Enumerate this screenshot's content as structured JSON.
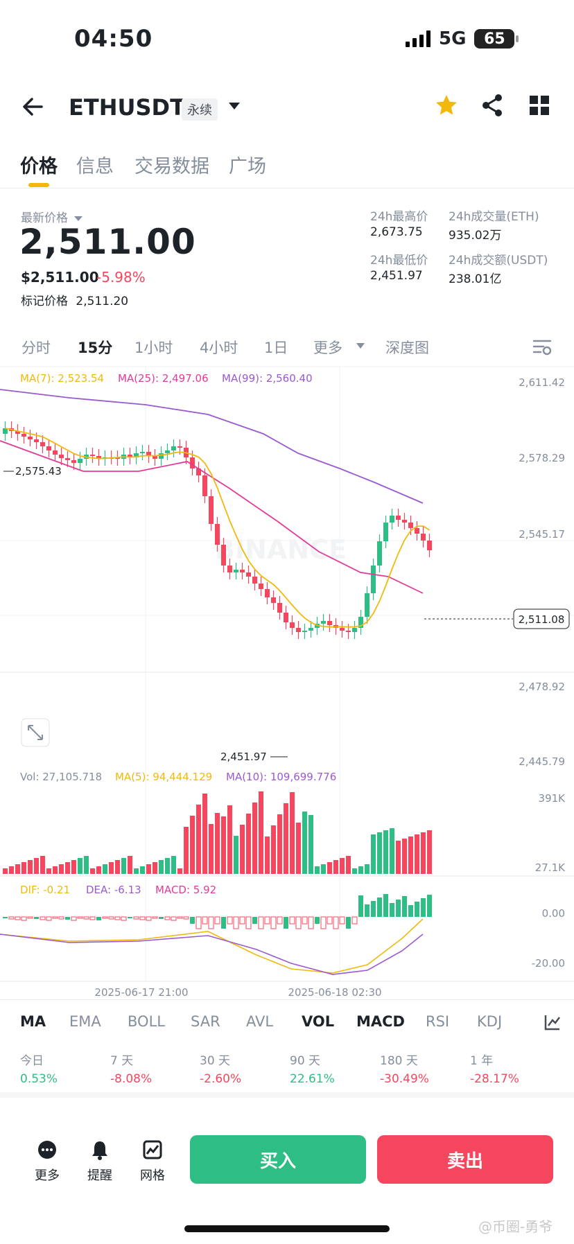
{
  "status_bar": {
    "time": "04:50",
    "network": "5G",
    "battery": "65"
  },
  "header": {
    "symbol": "ETHUSDT",
    "contract_tag": "永续"
  },
  "tabs": [
    "价格",
    "信息",
    "交易数据",
    "广场"
  ],
  "ticker": {
    "last_price_label": "最新价格",
    "last_price": "2,511.00",
    "usd_price": "$2,511.00",
    "change_pct": "-5.98%",
    "mark_price_label": "标记价格",
    "mark_price": "2,511.20",
    "high_label": "24h最高价",
    "high": "2,673.75",
    "low_label": "24h最低价",
    "low": "2,451.97",
    "vol_eth_label": "24h成交量(ETH)",
    "vol_eth": "935.02万",
    "vol_usdt_label": "24h成交额(USDT)",
    "vol_usdt": "238.01亿"
  },
  "timeframes": [
    "分时",
    "15分",
    "1小时",
    "4小时",
    "1日",
    "更多",
    "深度图"
  ],
  "chart": {
    "watermark": "BINANCE",
    "ma_legend": {
      "ma7": "MA(7): 2,523.54",
      "ma25": "MA(25): 2,497.06",
      "ma99": "MA(99): 2,560.40"
    },
    "price_axis": [
      "2,611.42",
      "2,578.29",
      "2,545.17",
      "2,511.08",
      "2,478.92",
      "2,445.79"
    ],
    "hi_marker": "2,575.43",
    "lo_marker": "2,451.97",
    "vol_legend": {
      "vol": "Vol: 27,105.718",
      "ma5": "MA(5): 94,444.129",
      "ma10": "MA(10): 109,699.776"
    },
    "vol_axis": [
      "391K",
      "27.1K"
    ],
    "macd_legend": {
      "dif": "DIF: -0.21",
      "dea": "DEA: -6.13",
      "macd": "MACD: 5.92"
    },
    "macd_axis": [
      "0.00",
      "-20.00"
    ],
    "time_axis": [
      "2025-06-17 21:00",
      "2025-06-18 02:30"
    ],
    "colors": {
      "up": "#2ebd85",
      "down": "#f6465d",
      "ma7": "#f0b90b",
      "ma25": "#e5399a",
      "ma99": "#9b59d0"
    }
  },
  "indicator_tabs": [
    "MA",
    "EMA",
    "BOLL",
    "SAR",
    "AVL",
    "VOL",
    "MACD",
    "RSI",
    "KDJ"
  ],
  "performance": [
    {
      "label": "今日",
      "value": "0.53%",
      "dir": "up"
    },
    {
      "label": "7 天",
      "value": "-8.08%",
      "dir": "down"
    },
    {
      "label": "30 天",
      "value": "-2.60%",
      "dir": "down"
    },
    {
      "label": "90 天",
      "value": "22.61%",
      "dir": "up"
    },
    {
      "label": "180 天",
      "value": "-30.49%",
      "dir": "down"
    },
    {
      "label": "1 年",
      "value": "-28.17%",
      "dir": "down"
    }
  ],
  "bottom": {
    "more": "更多",
    "alert": "提醒",
    "grid": "网格",
    "buy": "买入",
    "sell": "卖出"
  },
  "watermark_text": "@币圈-勇爷"
}
